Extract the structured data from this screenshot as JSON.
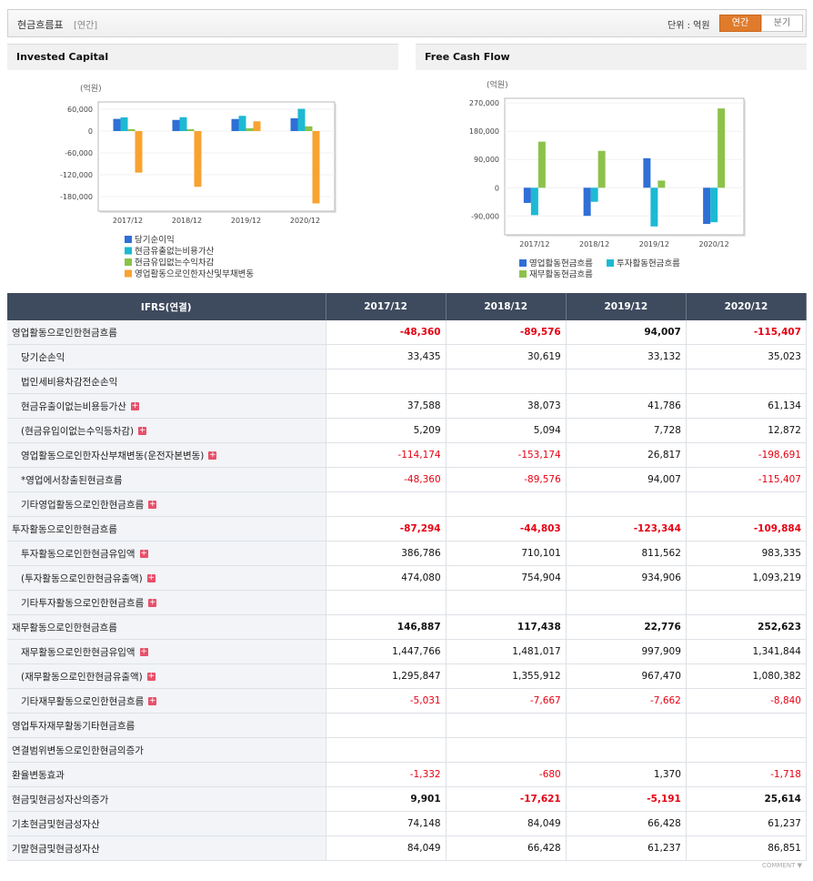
{
  "header": {
    "title": "현금흐름표",
    "period": "[연간]",
    "unit": "단위 : 억원",
    "tabs": [
      "연간",
      "분기"
    ],
    "active_tab": 0
  },
  "chart_data": [
    {
      "type": "bar",
      "title": "Invested Capital",
      "unit": "(억원)",
      "categories": [
        "2017/12",
        "2018/12",
        "2019/12",
        "2020/12"
      ],
      "series": [
        {
          "name": "당기순이익",
          "color": "#2f6fd6",
          "values": [
            33435,
            30619,
            33132,
            35023
          ]
        },
        {
          "name": "현금유출없는비용가산",
          "color": "#1db9d3",
          "values": [
            37588,
            38073,
            41786,
            61134
          ]
        },
        {
          "name": "현금유입없는수익차감",
          "color": "#8cc24a",
          "values": [
            5209,
            5094,
            7728,
            12872
          ]
        },
        {
          "name": "영업활동으로인한자산및부채변동",
          "color": "#f8a331",
          "values": [
            -114174,
            -153174,
            26817,
            -198691
          ]
        }
      ],
      "ylim": [
        -220000,
        80000
      ],
      "yticks": [
        {
          "value": 60000,
          "label": "60,000"
        },
        0,
        {
          "value": -60000,
          "label": "-60,000"
        },
        {
          "value": -120000,
          "label": "-120,000"
        },
        {
          "value": -180000,
          "label": "-180,000"
        }
      ],
      "grid": true
    },
    {
      "type": "bar",
      "title": "Free Cash Flow",
      "unit": "(억원)",
      "categories": [
        "2017/12",
        "2018/12",
        "2019/12",
        "2020/12"
      ],
      "series": [
        {
          "name": "영업활동현금흐름",
          "color": "#2f6fd6",
          "values": [
            -48360,
            -89576,
            94007,
            -115407
          ]
        },
        {
          "name": "투자활동현금흐름",
          "color": "#1db9d3",
          "values": [
            -87294,
            -44803,
            -123344,
            -109884
          ]
        },
        {
          "name": "재무활동현금흐름",
          "color": "#8cc24a",
          "values": [
            146887,
            117438,
            22776,
            252623
          ]
        }
      ],
      "ylim": [
        -150000,
        285000
      ],
      "yticks": [
        {
          "value": 270000,
          "label": "270,000"
        },
        {
          "value": 180000,
          "label": "180,000"
        },
        {
          "value": 90000,
          "label": "90,000"
        },
        0,
        {
          "value": -90000,
          "label": "-90,000"
        }
      ],
      "grid": true
    }
  ],
  "table": {
    "columns": [
      "IFRS(연결)",
      "2017/12",
      "2018/12",
      "2019/12",
      "2020/12"
    ],
    "rows": [
      {
        "label": "영업활동으로인한현금흐름",
        "indent": 0,
        "bold": true,
        "expand": false,
        "values": [
          "-48,360",
          "-89,576",
          "94,007",
          "-115,407"
        ]
      },
      {
        "label": "당기순손익",
        "indent": 1,
        "bold": false,
        "expand": false,
        "values": [
          "33,435",
          "30,619",
          "33,132",
          "35,023"
        ]
      },
      {
        "label": "법인세비용차감전순손익",
        "indent": 1,
        "bold": false,
        "expand": false,
        "values": [
          null,
          null,
          null,
          null
        ]
      },
      {
        "label": "현금유출이없는비용등가산",
        "indent": 1,
        "bold": false,
        "expand": true,
        "values": [
          "37,588",
          "38,073",
          "41,786",
          "61,134"
        ]
      },
      {
        "label": "(현금유입이없는수익등차감)",
        "indent": 1,
        "bold": false,
        "expand": true,
        "values": [
          "5,209",
          "5,094",
          "7,728",
          "12,872"
        ]
      },
      {
        "label": "영업활동으로인한자산부채변동(운전자본변동)",
        "indent": 1,
        "bold": false,
        "expand": true,
        "values": [
          "-114,174",
          "-153,174",
          "26,817",
          "-198,691"
        ]
      },
      {
        "label": "*영업에서창출된현금흐름",
        "indent": 1,
        "bold": false,
        "expand": false,
        "values": [
          "-48,360",
          "-89,576",
          "94,007",
          "-115,407"
        ]
      },
      {
        "label": "기타영업활동으로인한현금흐름",
        "indent": 1,
        "bold": false,
        "expand": true,
        "values": [
          null,
          null,
          null,
          null
        ]
      },
      {
        "label": "투자활동으로인한현금흐름",
        "indent": 0,
        "bold": true,
        "expand": false,
        "values": [
          "-87,294",
          "-44,803",
          "-123,344",
          "-109,884"
        ]
      },
      {
        "label": "투자활동으로인한현금유입액",
        "indent": 1,
        "bold": false,
        "expand": true,
        "values": [
          "386,786",
          "710,101",
          "811,562",
          "983,335"
        ]
      },
      {
        "label": "(투자활동으로인한현금유출액)",
        "indent": 1,
        "bold": false,
        "expand": true,
        "values": [
          "474,080",
          "754,904",
          "934,906",
          "1,093,219"
        ]
      },
      {
        "label": "기타투자활동으로인한현금흐름",
        "indent": 1,
        "bold": false,
        "expand": true,
        "values": [
          null,
          null,
          null,
          null
        ]
      },
      {
        "label": "재무활동으로인한현금흐름",
        "indent": 0,
        "bold": true,
        "expand": false,
        "values": [
          "146,887",
          "117,438",
          "22,776",
          "252,623"
        ]
      },
      {
        "label": "재무활동으로인한현금유입액",
        "indent": 1,
        "bold": false,
        "expand": true,
        "values": [
          "1,447,766",
          "1,481,017",
          "997,909",
          "1,341,844"
        ]
      },
      {
        "label": "(재무활동으로인한현금유출액)",
        "indent": 1,
        "bold": false,
        "expand": true,
        "values": [
          "1,295,847",
          "1,355,912",
          "967,470",
          "1,080,382"
        ]
      },
      {
        "label": "기타재무활동으로인한현금흐름",
        "indent": 1,
        "bold": false,
        "expand": true,
        "values": [
          "-5,031",
          "-7,667",
          "-7,662",
          "-8,840"
        ]
      },
      {
        "label": "영업투자재무활동기타현금흐름",
        "indent": 0,
        "bold": false,
        "expand": false,
        "values": [
          null,
          null,
          null,
          null
        ]
      },
      {
        "label": "연결범위변동으로인한현금의증가",
        "indent": 0,
        "bold": false,
        "expand": false,
        "values": [
          null,
          null,
          null,
          null
        ]
      },
      {
        "label": "환율변동효과",
        "indent": 0,
        "bold": false,
        "expand": false,
        "values": [
          "-1,332",
          "-680",
          "1,370",
          "-1,718"
        ]
      },
      {
        "label": "현금및현금성자산의증가",
        "indent": 0,
        "bold": true,
        "expand": false,
        "values": [
          "9,901",
          "-17,621",
          "-5,191",
          "25,614"
        ]
      },
      {
        "label": "기초현금및현금성자산",
        "indent": 0,
        "bold": false,
        "expand": false,
        "values": [
          "74,148",
          "84,049",
          "66,428",
          "61,237"
        ]
      },
      {
        "label": "기말현금및현금성자산",
        "indent": 0,
        "bold": false,
        "expand": false,
        "values": [
          "84,049",
          "66,428",
          "61,237",
          "86,851"
        ]
      }
    ]
  },
  "footer": "COMMENT"
}
